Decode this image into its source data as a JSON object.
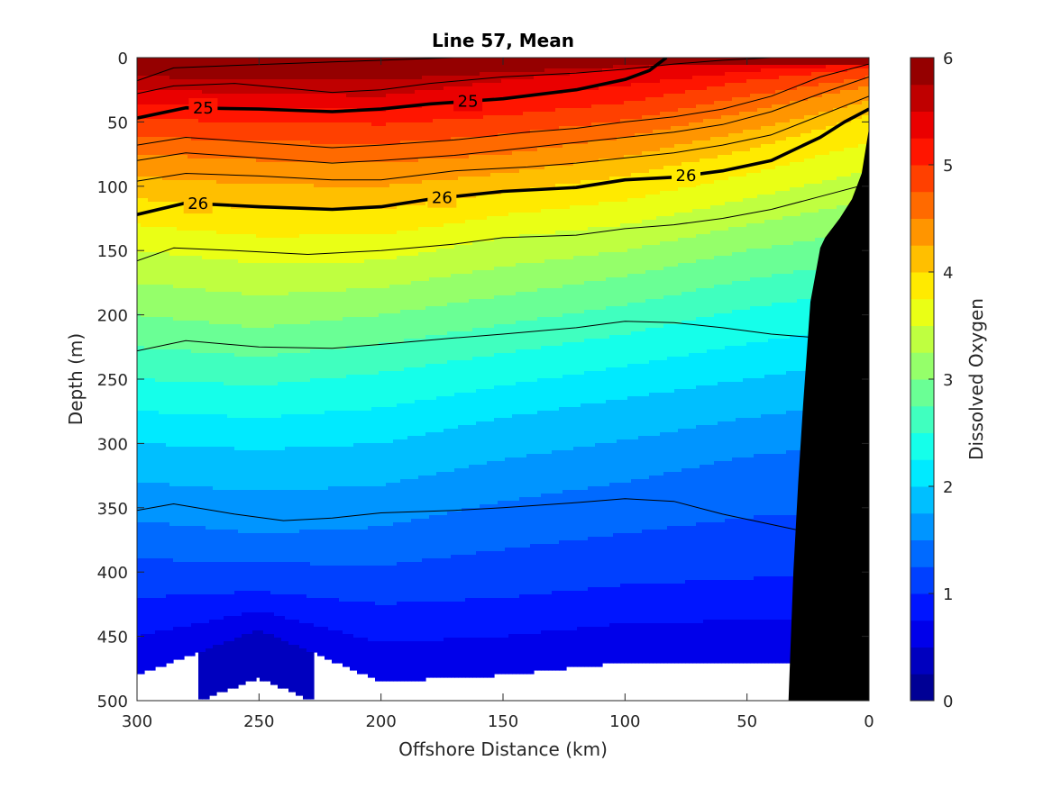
{
  "chart_data": {
    "type": "contourf",
    "title": "Line 57, Mean",
    "xlabel": "Offshore Distance (km)",
    "ylabel": "Depth (m)",
    "colorbar_label": "Dissolved Oxygen",
    "xlim": [
      300,
      0
    ],
    "ylim": [
      500,
      0
    ],
    "x_ticks": [
      "300",
      "250",
      "200",
      "150",
      "100",
      "50",
      "0"
    ],
    "y_ticks": [
      "0",
      "50",
      "100",
      "150",
      "200",
      "250",
      "300",
      "350",
      "400",
      "450",
      "500"
    ],
    "colorbar_ticks": [
      "0",
      "1",
      "2",
      "3",
      "4",
      "5",
      "6"
    ],
    "colorbar_range": [
      0,
      6
    ],
    "colormap": "jet",
    "fill_levels": [
      0,
      0.25,
      0.5,
      0.75,
      1,
      1.25,
      1.5,
      1.75,
      2,
      2.25,
      2.5,
      2.75,
      3,
      3.25,
      3.5,
      3.75,
      4,
      4.25,
      4.5,
      4.75,
      5,
      5.25,
      5.5,
      5.75,
      6
    ],
    "oxygen_isolines": {
      "x": [
        300,
        250,
        200,
        150,
        100,
        50,
        0
      ],
      "levels": [
        6.0,
        5.5,
        5.0,
        4.5,
        4.0,
        3.5,
        3.0,
        2.5,
        2.0,
        1.5,
        1.0,
        0.5
      ],
      "depths": [
        [
          5,
          5,
          5,
          5,
          5,
          5,
          5
        ],
        [
          25,
          28,
          30,
          18,
          8,
          3,
          2
        ],
        [
          48,
          50,
          52,
          45,
          35,
          18,
          8
        ],
        [
          75,
          80,
          82,
          75,
          62,
          42,
          22
        ],
        [
          110,
          118,
          118,
          105,
          92,
          72,
          45
        ],
        [
          150,
          160,
          158,
          140,
          130,
          110,
          88
        ],
        [
          200,
          210,
          200,
          185,
          170,
          150,
          135
        ],
        [
          250,
          255,
          245,
          230,
          215,
          195,
          180
        ],
        [
          300,
          305,
          300,
          280,
          265,
          250,
          235
        ],
        [
          360,
          370,
          365,
          345,
          330,
          310,
          300
        ],
        [
          420,
          415,
          425,
          420,
          410,
          405,
          400
        ],
        [
          480,
          445,
          485,
          480,
          470,
          470,
          470
        ]
      ]
    },
    "density_contours": [
      {
        "level": 25,
        "bold": true,
        "labels": [
          "25",
          "25"
        ],
        "x": [
          300,
          280,
          250,
          220,
          200,
          180,
          150,
          120,
          100,
          90,
          83
        ],
        "y": [
          47,
          39,
          40,
          42,
          40,
          36,
          32,
          25,
          17,
          10,
          0
        ]
      },
      {
        "level": 26,
        "bold": true,
        "labels": [
          "26",
          "26",
          "26"
        ],
        "x": [
          300,
          280,
          250,
          220,
          200,
          180,
          150,
          120,
          100,
          80,
          60,
          40,
          20,
          10,
          0
        ],
        "y": [
          122,
          113,
          116,
          118,
          116,
          110,
          104,
          101,
          95,
          93,
          88,
          80,
          62,
          50,
          40
        ]
      },
      {
        "level": null,
        "bold": false,
        "labels": [],
        "x": [
          300,
          285,
          260,
          230,
          200,
          170,
          150,
          120,
          100,
          80,
          60,
          40,
          20,
          0
        ],
        "y": [
          18,
          8,
          6,
          4,
          2,
          0,
          0,
          0,
          0,
          0,
          0,
          0,
          0,
          0
        ]
      },
      {
        "level": null,
        "bold": false,
        "labels": [],
        "x": [
          300,
          285,
          260,
          220,
          200,
          180,
          150,
          120,
          100,
          80,
          60,
          40,
          20,
          0
        ],
        "y": [
          28,
          22,
          20,
          27,
          25,
          20,
          15,
          12,
          9,
          5,
          2,
          0,
          0,
          0
        ]
      },
      {
        "level": null,
        "bold": false,
        "labels": [],
        "x": [
          300,
          280,
          250,
          220,
          200,
          170,
          140,
          120,
          100,
          80,
          60,
          40,
          20,
          0
        ],
        "y": [
          68,
          62,
          66,
          70,
          68,
          64,
          58,
          55,
          50,
          46,
          40,
          30,
          15,
          5
        ]
      },
      {
        "level": null,
        "bold": false,
        "labels": [],
        "x": [
          300,
          280,
          250,
          220,
          200,
          170,
          140,
          120,
          100,
          80,
          60,
          40,
          20,
          0
        ],
        "y": [
          80,
          74,
          78,
          82,
          80,
          76,
          70,
          66,
          62,
          58,
          52,
          42,
          28,
          15
        ]
      },
      {
        "level": null,
        "bold": false,
        "labels": [],
        "x": [
          300,
          280,
          250,
          220,
          200,
          170,
          140,
          120,
          100,
          80,
          60,
          40,
          20,
          0
        ],
        "y": [
          96,
          90,
          92,
          95,
          95,
          88,
          85,
          82,
          78,
          74,
          68,
          60,
          45,
          30
        ]
      },
      {
        "level": null,
        "bold": false,
        "labels": [],
        "x": [
          300,
          285,
          260,
          230,
          200,
          170,
          150,
          120,
          100,
          80,
          60,
          40,
          20,
          0
        ],
        "y": [
          158,
          148,
          150,
          153,
          150,
          145,
          140,
          138,
          133,
          130,
          125,
          118,
          108,
          98
        ]
      },
      {
        "level": null,
        "bold": false,
        "labels": [],
        "x": [
          300,
          280,
          250,
          220,
          200,
          170,
          150,
          120,
          100,
          80,
          60,
          40,
          20
        ],
        "y": [
          228,
          220,
          225,
          226,
          223,
          218,
          215,
          210,
          205,
          206,
          210,
          215,
          218
        ]
      },
      {
        "level": null,
        "bold": false,
        "labels": [],
        "x": [
          300,
          285,
          260,
          240,
          220,
          200,
          170,
          150,
          120,
          100,
          80,
          60,
          40,
          30
        ],
        "y": [
          352,
          347,
          355,
          360,
          358,
          354,
          352,
          350,
          346,
          343,
          345,
          355,
          363,
          367
        ]
      }
    ],
    "bathymetry_polygon": {
      "x": [
        0,
        0,
        3,
        7,
        12,
        18,
        20,
        24,
        27,
        29,
        31,
        33,
        0
      ],
      "y": [
        40,
        55,
        90,
        110,
        125,
        140,
        148,
        190,
        270,
        330,
        400,
        500,
        500
      ]
    }
  }
}
